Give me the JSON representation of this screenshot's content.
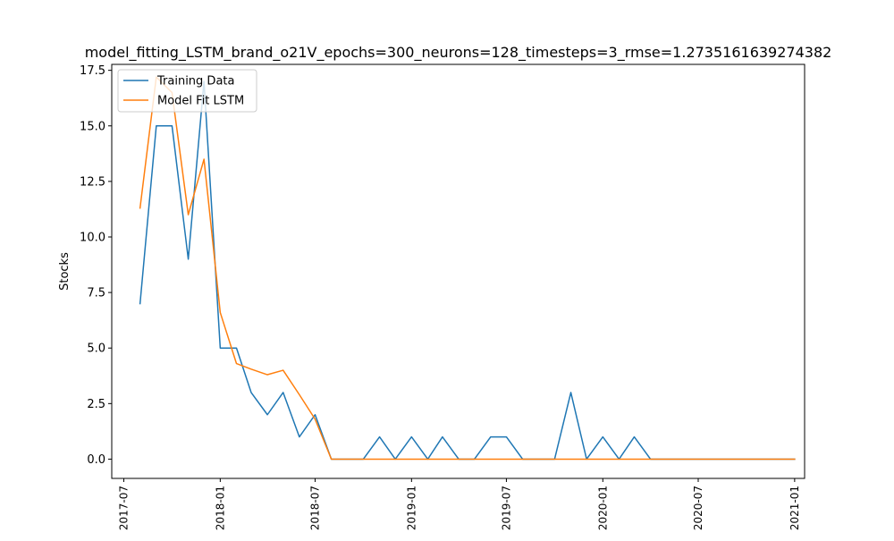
{
  "chart_data": {
    "type": "line",
    "title": "model_fitting_LSTM_brand_o21V_epochs=300_neurons=128_timesteps=3_rmse=1.2735161639274382",
    "xlabel": "",
    "ylabel": "Stocks",
    "ylim": [
      -0.8675,
      17.7675
    ],
    "xlim": [
      "2017-06-08",
      "2021-01-20"
    ],
    "grid": false,
    "legend_position": "top-left",
    "x_ticks": [
      "2017-07",
      "2018-01",
      "2018-07",
      "2019-01",
      "2019-07",
      "2020-01",
      "2020-07",
      "2021-01"
    ],
    "y_ticks": [
      "0.0",
      "2.5",
      "5.0",
      "7.5",
      "10.0",
      "12.5",
      "15.0",
      "17.5"
    ],
    "x_tick_dates": [
      "2017-07-01",
      "2018-01-01",
      "2018-07-01",
      "2019-01-01",
      "2019-07-01",
      "2020-01-01",
      "2020-07-01",
      "2021-01-01"
    ],
    "y_tick_values": [
      0,
      2.5,
      5,
      7.5,
      10,
      12.5,
      15,
      17.5
    ],
    "series": [
      {
        "name": "Training Data",
        "color": "#1f77b4",
        "x": [
          "2017-08-01",
          "2017-09-01",
          "2017-10-01",
          "2017-11-01",
          "2017-12-01",
          "2018-01-01",
          "2018-02-01",
          "2018-03-01",
          "2018-04-01",
          "2018-05-01",
          "2018-06-01",
          "2018-07-01",
          "2018-08-01",
          "2018-09-01",
          "2018-10-01",
          "2018-11-01",
          "2018-12-01",
          "2019-01-01",
          "2019-02-01",
          "2019-03-01",
          "2019-04-01",
          "2019-05-01",
          "2019-06-01",
          "2019-07-01",
          "2019-08-01",
          "2019-09-01",
          "2019-10-01",
          "2019-11-01",
          "2019-12-01",
          "2020-01-01",
          "2020-02-01",
          "2020-03-01",
          "2020-04-01",
          "2020-05-01",
          "2020-06-01",
          "2020-07-01",
          "2020-08-01",
          "2020-09-01",
          "2020-10-01",
          "2020-11-01",
          "2020-12-01",
          "2021-01-01"
        ],
        "values": [
          7,
          15,
          15,
          9,
          17,
          5,
          5,
          3,
          2,
          3,
          1,
          2,
          0,
          0,
          0,
          1,
          0,
          1,
          0,
          1,
          0,
          0,
          1,
          1,
          0,
          0,
          0,
          3,
          0,
          1,
          0,
          1,
          0,
          0,
          0,
          0,
          0,
          0,
          0,
          0,
          0,
          0
        ]
      },
      {
        "name": "Model Fit LSTM",
        "color": "#ff7f0e",
        "x": [
          "2017-08-01",
          "2017-09-01",
          "2017-10-01",
          "2017-11-01",
          "2017-12-01",
          "2018-01-01",
          "2018-02-01",
          "2018-03-01",
          "2018-04-01",
          "2018-05-01",
          "2018-06-01",
          "2018-07-01",
          "2018-08-01",
          "2018-09-01",
          "2018-10-01",
          "2018-11-01",
          "2018-12-01",
          "2019-01-01",
          "2019-02-01",
          "2019-03-01",
          "2019-04-01",
          "2019-05-01",
          "2019-06-01",
          "2019-07-01",
          "2019-08-01",
          "2019-09-01",
          "2019-10-01",
          "2019-11-01",
          "2019-12-01",
          "2020-01-01",
          "2020-02-01",
          "2020-03-01",
          "2020-04-01",
          "2020-05-01",
          "2020-06-01",
          "2020-07-01",
          "2020-08-01",
          "2020-09-01",
          "2020-10-01",
          "2020-11-01",
          "2020-12-01",
          "2021-01-01"
        ],
        "values": [
          11.3,
          17.2,
          16.5,
          11.0,
          13.5,
          6.6,
          4.3,
          4.05,
          3.8,
          4.0,
          2.9,
          1.8,
          0,
          0,
          0,
          0,
          0,
          0,
          0,
          0,
          0,
          0,
          0,
          0,
          0,
          0,
          0,
          0,
          0,
          0,
          0,
          0,
          0,
          0,
          0,
          0,
          0,
          0,
          0,
          0,
          0,
          0
        ]
      }
    ]
  }
}
